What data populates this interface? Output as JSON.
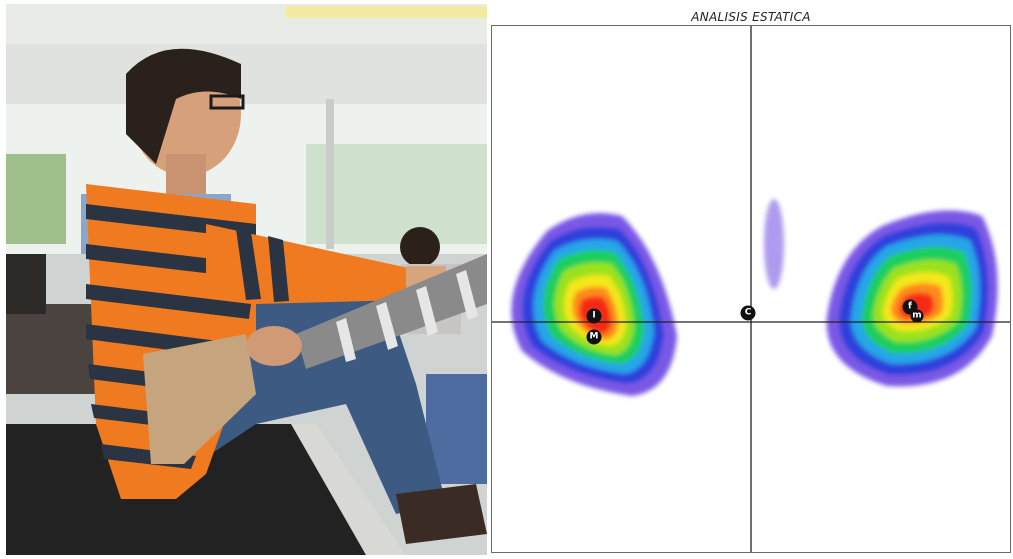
{
  "figure": {
    "plot_title": "ANALISIS ESTATICA",
    "photo_description_hidden": "",
    "markers": {
      "left_I": "I",
      "left_M": "M",
      "center_C": "C",
      "right_f": "f",
      "right_m": "m"
    },
    "heatmap_colors": [
      "#7a58e6",
      "#2f3fdc",
      "#27a6e8",
      "#1fcf5c",
      "#9be21e",
      "#f5e61a",
      "#ff8a1a",
      "#f52a12"
    ]
  }
}
